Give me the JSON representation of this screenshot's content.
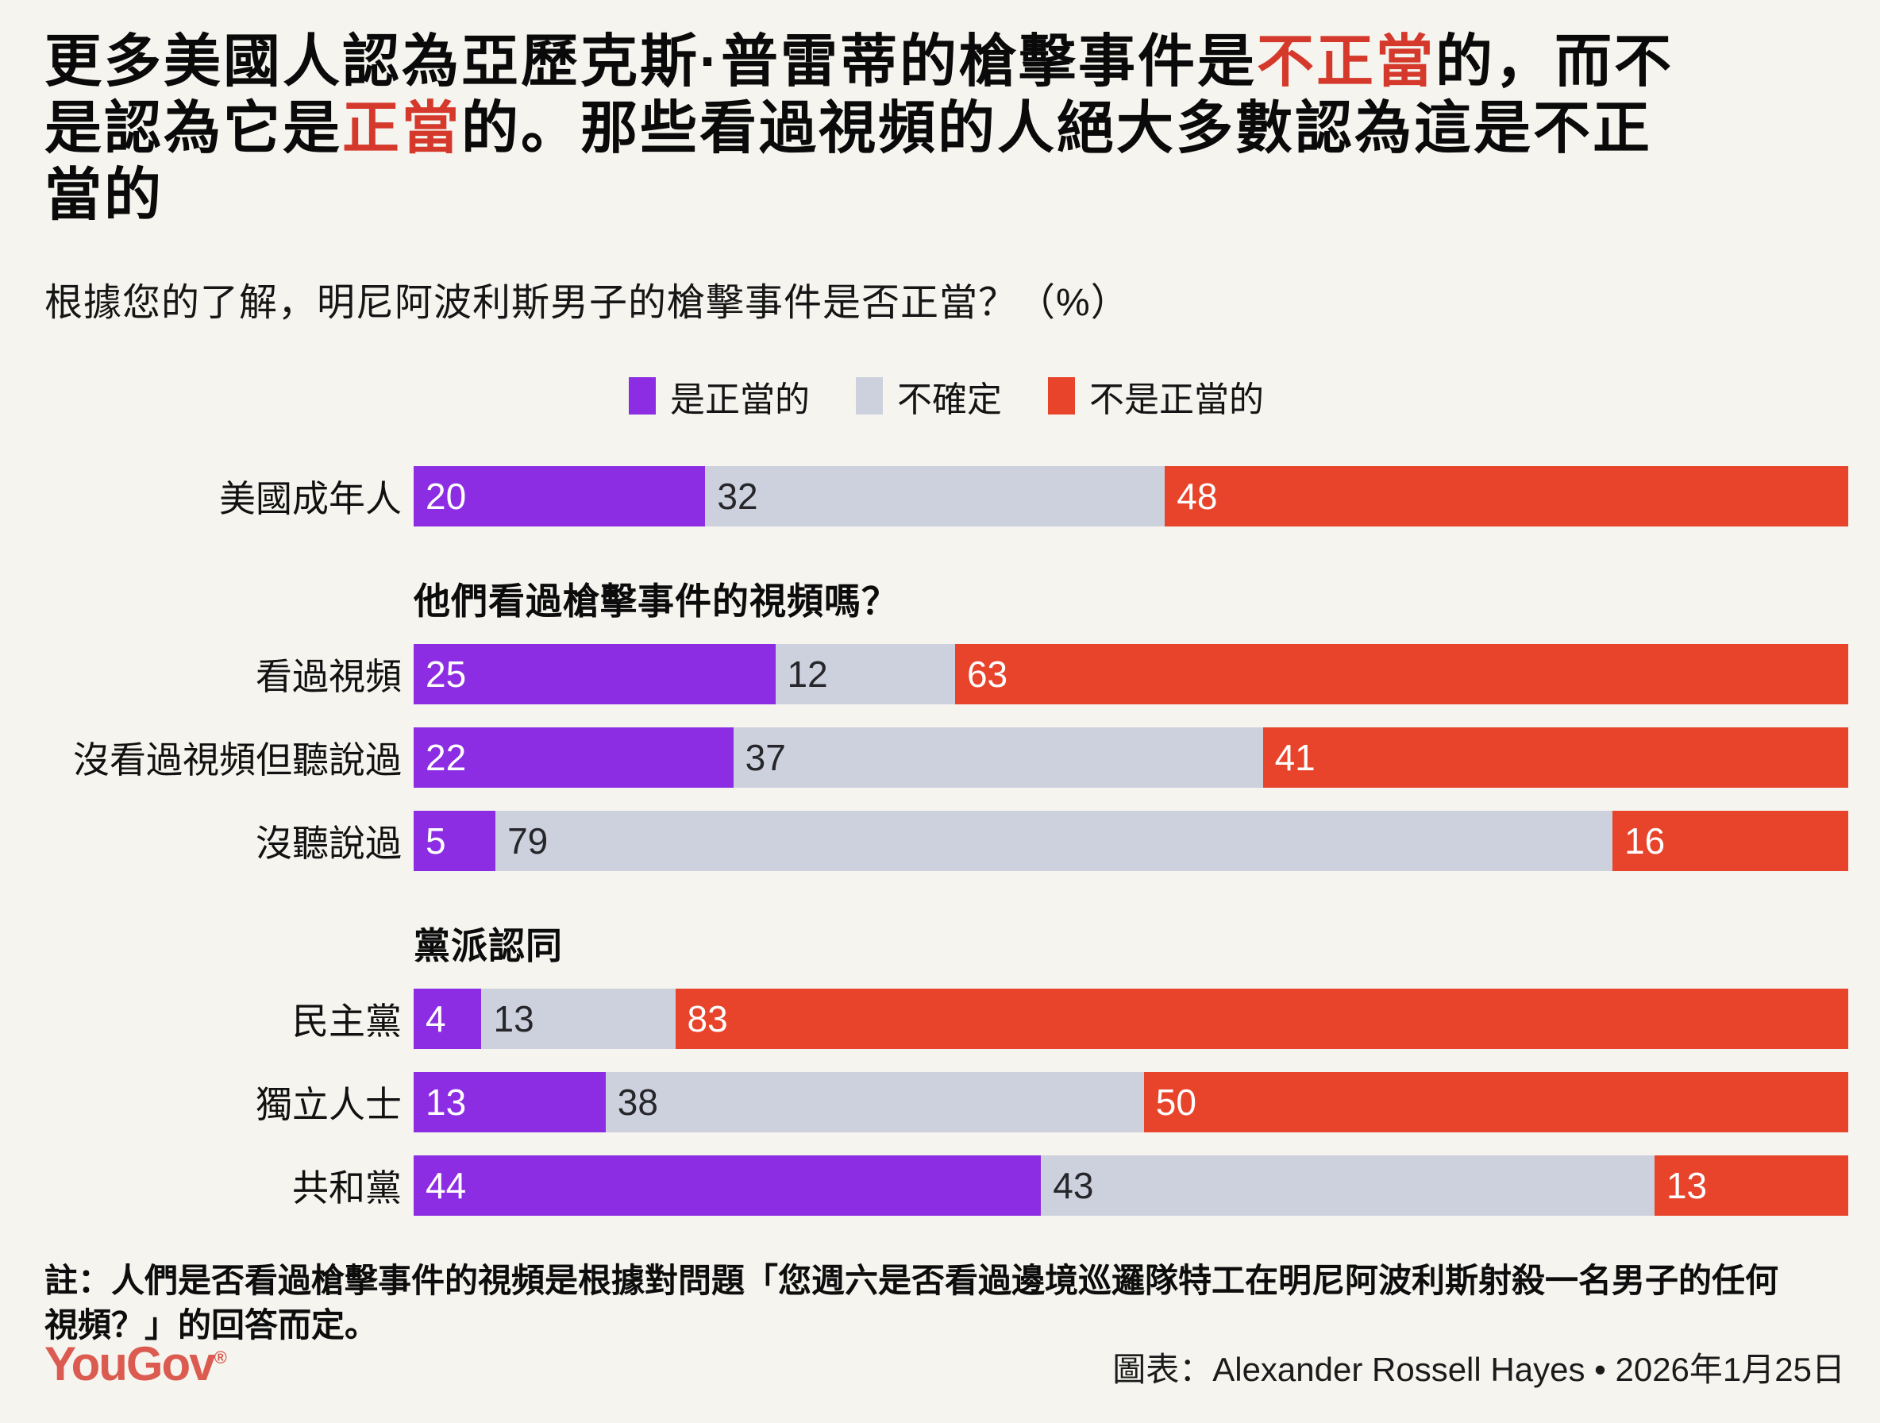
{
  "title": {
    "lines": [
      [
        {
          "text": "更多美國人認為亞歷克斯·普雷蒂的槍擊事件是",
          "red": false
        },
        {
          "text": "不正當",
          "red": true
        },
        {
          "text": "的，而不",
          "red": false
        }
      ],
      [
        {
          "text": "是認為它是",
          "red": false
        },
        {
          "text": "正當",
          "red": true
        },
        {
          "text": "的。那些看過視頻的人絕大多數認為這是不正",
          "red": false
        }
      ],
      [
        {
          "text": "當的",
          "red": false
        }
      ]
    ]
  },
  "subtitle": "根據您的了解，明尼阿波利斯男子的槍擊事件是否正當？（%）",
  "legend": [
    {
      "label": "是正當的",
      "color": "#8c2de3"
    },
    {
      "label": "不確定",
      "color": "#cdd1dd"
    },
    {
      "label": "不是正當的",
      "color": "#e8432b"
    }
  ],
  "chart_data": {
    "type": "bar",
    "stacked": true,
    "orientation": "horizontal",
    "unit": "%",
    "xlim": [
      0,
      100
    ],
    "series_names": [
      "是正當的",
      "不確定",
      "不是正當的"
    ],
    "series_colors": [
      "#8c2de3",
      "#cdd1dd",
      "#e8432b"
    ],
    "groups": [
      {
        "header": "",
        "rows": [
          {
            "label": "美國成年人",
            "values": [
              20,
              32,
              48
            ]
          }
        ]
      },
      {
        "header": "他們看過槍擊事件的視頻嗎？",
        "rows": [
          {
            "label": "看過視頻",
            "values": [
              25,
              12,
              63
            ]
          },
          {
            "label": "沒看過視頻但聽說過",
            "values": [
              22,
              37,
              41
            ]
          },
          {
            "label": "沒聽說過",
            "values": [
              5,
              79,
              16
            ]
          }
        ]
      },
      {
        "header": "黨派認同",
        "rows": [
          {
            "label": "民主黨",
            "values": [
              4,
              13,
              83
            ]
          },
          {
            "label": "獨立人士",
            "values": [
              13,
              38,
              50
            ]
          },
          {
            "label": "共和黨",
            "values": [
              44,
              43,
              13
            ]
          }
        ]
      }
    ]
  },
  "note": "註：人們是否看過槍擊事件的視頻是根據對問題「您週六是否看過邊境巡邏隊特工在明尼阿波利斯射殺一名男子的任何視頻？」的回答而定。",
  "footer": {
    "logo": "YouGov",
    "logo_mark": "®",
    "credit": "圖表：Alexander Rossell Hayes • 2026年1月25日"
  },
  "colors": {
    "background": "#f5f4ef",
    "title_red": "#d5392b",
    "purple": "#8c2de3",
    "gray": "#cdd1dd",
    "red": "#e8432b",
    "logo_red": "#db5b51"
  }
}
